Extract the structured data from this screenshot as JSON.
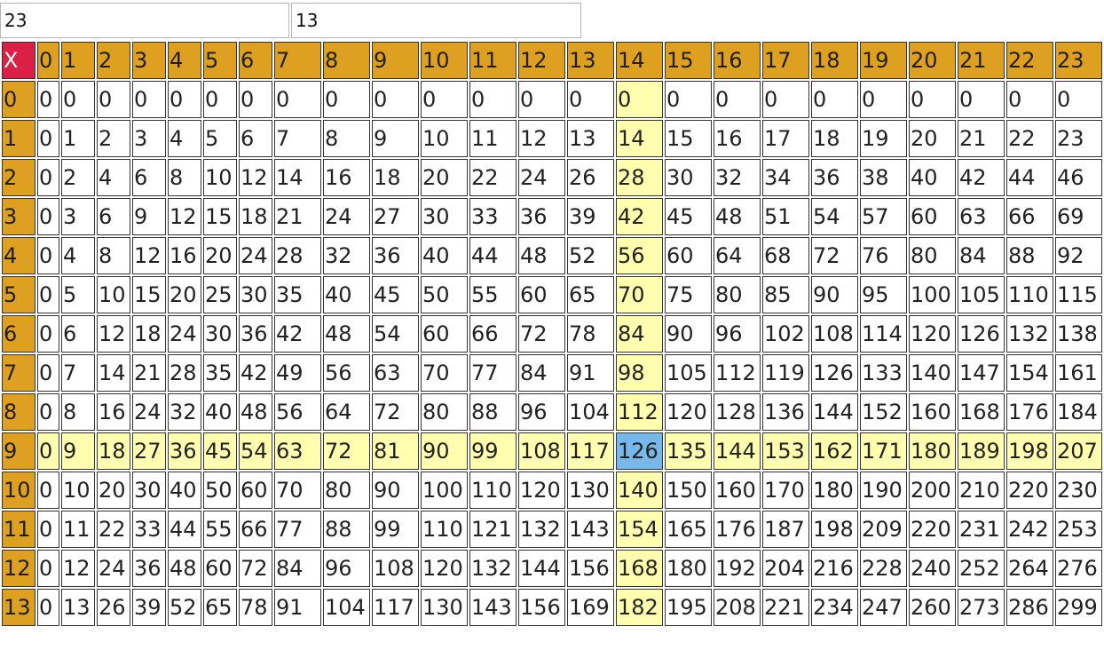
{
  "inputs": {
    "columns_value": "23",
    "rows_value": "13"
  },
  "table": {
    "corner_label": "X",
    "col_headers": [
      "0",
      "1",
      "2",
      "3",
      "4",
      "5",
      "6",
      "7",
      "8",
      "9",
      "10",
      "11",
      "12",
      "13",
      "14",
      "15",
      "16",
      "17",
      "18",
      "19",
      "20",
      "21",
      "22",
      "23"
    ],
    "row_headers": [
      "0",
      "1",
      "2",
      "3",
      "4",
      "5",
      "6",
      "7",
      "8",
      "9",
      "10",
      "11",
      "12",
      "13"
    ],
    "highlight_row": 9,
    "highlight_col": 14,
    "rows": [
      [
        "0",
        "0",
        "0",
        "0",
        "0",
        "0",
        "0",
        "0",
        "0",
        "0",
        "0",
        "0",
        "0",
        "0",
        "0",
        "0",
        "0",
        "0",
        "0",
        "0",
        "0",
        "0",
        "0",
        "0"
      ],
      [
        "0",
        "1",
        "2",
        "3",
        "4",
        "5",
        "6",
        "7",
        "8",
        "9",
        "10",
        "11",
        "12",
        "13",
        "14",
        "15",
        "16",
        "17",
        "18",
        "19",
        "20",
        "21",
        "22",
        "23"
      ],
      [
        "0",
        "2",
        "4",
        "6",
        "8",
        "10",
        "12",
        "14",
        "16",
        "18",
        "20",
        "22",
        "24",
        "26",
        "28",
        "30",
        "32",
        "34",
        "36",
        "38",
        "40",
        "42",
        "44",
        "46"
      ],
      [
        "0",
        "3",
        "6",
        "9",
        "12",
        "15",
        "18",
        "21",
        "24",
        "27",
        "30",
        "33",
        "36",
        "39",
        "42",
        "45",
        "48",
        "51",
        "54",
        "57",
        "60",
        "63",
        "66",
        "69"
      ],
      [
        "0",
        "4",
        "8",
        "12",
        "16",
        "20",
        "24",
        "28",
        "32",
        "36",
        "40",
        "44",
        "48",
        "52",
        "56",
        "60",
        "64",
        "68",
        "72",
        "76",
        "80",
        "84",
        "88",
        "92"
      ],
      [
        "0",
        "5",
        "10",
        "15",
        "20",
        "25",
        "30",
        "35",
        "40",
        "45",
        "50",
        "55",
        "60",
        "65",
        "70",
        "75",
        "80",
        "85",
        "90",
        "95",
        "100",
        "105",
        "110",
        "115"
      ],
      [
        "0",
        "6",
        "12",
        "18",
        "24",
        "30",
        "36",
        "42",
        "48",
        "54",
        "60",
        "66",
        "72",
        "78",
        "84",
        "90",
        "96",
        "102",
        "108",
        "114",
        "120",
        "126",
        "132",
        "138"
      ],
      [
        "0",
        "7",
        "14",
        "21",
        "28",
        "35",
        "42",
        "49",
        "56",
        "63",
        "70",
        "77",
        "84",
        "91",
        "98",
        "105",
        "112",
        "119",
        "126",
        "133",
        "140",
        "147",
        "154",
        "161"
      ],
      [
        "0",
        "8",
        "16",
        "24",
        "32",
        "40",
        "48",
        "56",
        "64",
        "72",
        "80",
        "88",
        "96",
        "104",
        "112",
        "120",
        "128",
        "136",
        "144",
        "152",
        "160",
        "168",
        "176",
        "184"
      ],
      [
        "0",
        "9",
        "18",
        "27",
        "36",
        "45",
        "54",
        "63",
        "72",
        "81",
        "90",
        "99",
        "108",
        "117",
        "126",
        "135",
        "144",
        "153",
        "162",
        "171",
        "180",
        "189",
        "198",
        "207"
      ],
      [
        "0",
        "10",
        "20",
        "30",
        "40",
        "50",
        "60",
        "70",
        "80",
        "90",
        "100",
        "110",
        "120",
        "130",
        "140",
        "150",
        "160",
        "170",
        "180",
        "190",
        "200",
        "210",
        "220",
        "230"
      ],
      [
        "0",
        "11",
        "22",
        "33",
        "44",
        "55",
        "66",
        "77",
        "88",
        "99",
        "110",
        "121",
        "132",
        "143",
        "154",
        "165",
        "176",
        "187",
        "198",
        "209",
        "220",
        "231",
        "242",
        "253"
      ],
      [
        "0",
        "12",
        "24",
        "36",
        "48",
        "60",
        "72",
        "84",
        "96",
        "108",
        "120",
        "132",
        "144",
        "156",
        "168",
        "180",
        "192",
        "204",
        "216",
        "228",
        "240",
        "252",
        "264",
        "276"
      ],
      [
        "0",
        "13",
        "26",
        "39",
        "52",
        "65",
        "78",
        "91",
        "104",
        "117",
        "130",
        "143",
        "156",
        "169",
        "182",
        "195",
        "208",
        "221",
        "234",
        "247",
        "260",
        "273",
        "286",
        "299"
      ]
    ]
  }
}
